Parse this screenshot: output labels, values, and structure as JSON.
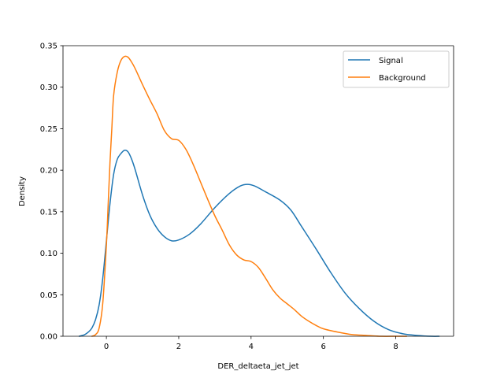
{
  "chart_data": {
    "type": "line",
    "title": "",
    "xlabel": "DER_deltaeta_jet_jet",
    "ylabel": "Density",
    "xlim": [
      -1.2,
      9.6
    ],
    "ylim": [
      0,
      0.35
    ],
    "xticks": [
      0,
      2,
      4,
      6,
      8
    ],
    "xtick_labels": [
      "0",
      "2",
      "4",
      "6",
      "8"
    ],
    "yticks": [
      0,
      0.05,
      0.1,
      0.15,
      0.2,
      0.25,
      0.3,
      0.35
    ],
    "ytick_labels": [
      "0.00",
      "0.05",
      "0.10",
      "0.15",
      "0.20",
      "0.25",
      "0.30",
      "0.35"
    ],
    "grid": false,
    "legend_position": "top-right",
    "series": [
      {
        "name": "Signal",
        "color": "#1f77b4",
        "x": [
          -0.75,
          -0.6,
          -0.5,
          -0.4,
          -0.3,
          -0.2,
          -0.1,
          0.0,
          0.1,
          0.2,
          0.3,
          0.4,
          0.5,
          0.6,
          0.7,
          0.8,
          1.0,
          1.2,
          1.4,
          1.6,
          1.8,
          2.0,
          2.3,
          2.6,
          3.0,
          3.4,
          3.7,
          3.9,
          4.1,
          4.4,
          4.8,
          5.1,
          5.4,
          5.8,
          6.2,
          6.6,
          7.0,
          7.4,
          7.8,
          8.2,
          8.6,
          9.0,
          9.2
        ],
        "values": [
          0.0,
          0.002,
          0.005,
          0.01,
          0.02,
          0.038,
          0.07,
          0.115,
          0.16,
          0.195,
          0.213,
          0.22,
          0.224,
          0.222,
          0.213,
          0.2,
          0.17,
          0.146,
          0.13,
          0.12,
          0.115,
          0.116,
          0.123,
          0.135,
          0.155,
          0.172,
          0.181,
          0.183,
          0.181,
          0.174,
          0.164,
          0.152,
          0.132,
          0.105,
          0.077,
          0.052,
          0.033,
          0.018,
          0.008,
          0.003,
          0.001,
          0.0,
          0.0
        ]
      },
      {
        "name": "Background",
        "color": "#ff7f0e",
        "x": [
          -0.4,
          -0.3,
          -0.2,
          -0.1,
          0.0,
          0.05,
          0.1,
          0.15,
          0.2,
          0.3,
          0.4,
          0.5,
          0.6,
          0.7,
          0.8,
          1.0,
          1.2,
          1.4,
          1.6,
          1.8,
          2.0,
          2.2,
          2.4,
          2.6,
          2.8,
          3.0,
          3.2,
          3.4,
          3.6,
          3.8,
          4.0,
          4.2,
          4.4,
          4.6,
          4.8,
          5.0,
          5.2,
          5.4,
          5.6,
          5.8,
          6.0,
          6.4,
          6.8,
          7.2,
          7.6,
          8.0,
          8.3
        ],
        "values": [
          0.0,
          0.002,
          0.01,
          0.04,
          0.11,
          0.16,
          0.21,
          0.25,
          0.29,
          0.318,
          0.332,
          0.337,
          0.336,
          0.33,
          0.322,
          0.303,
          0.285,
          0.268,
          0.248,
          0.238,
          0.236,
          0.225,
          0.207,
          0.186,
          0.165,
          0.145,
          0.128,
          0.11,
          0.098,
          0.092,
          0.09,
          0.083,
          0.07,
          0.056,
          0.046,
          0.039,
          0.032,
          0.024,
          0.018,
          0.013,
          0.009,
          0.005,
          0.002,
          0.001,
          0.0,
          0.0,
          0.0
        ]
      }
    ]
  }
}
